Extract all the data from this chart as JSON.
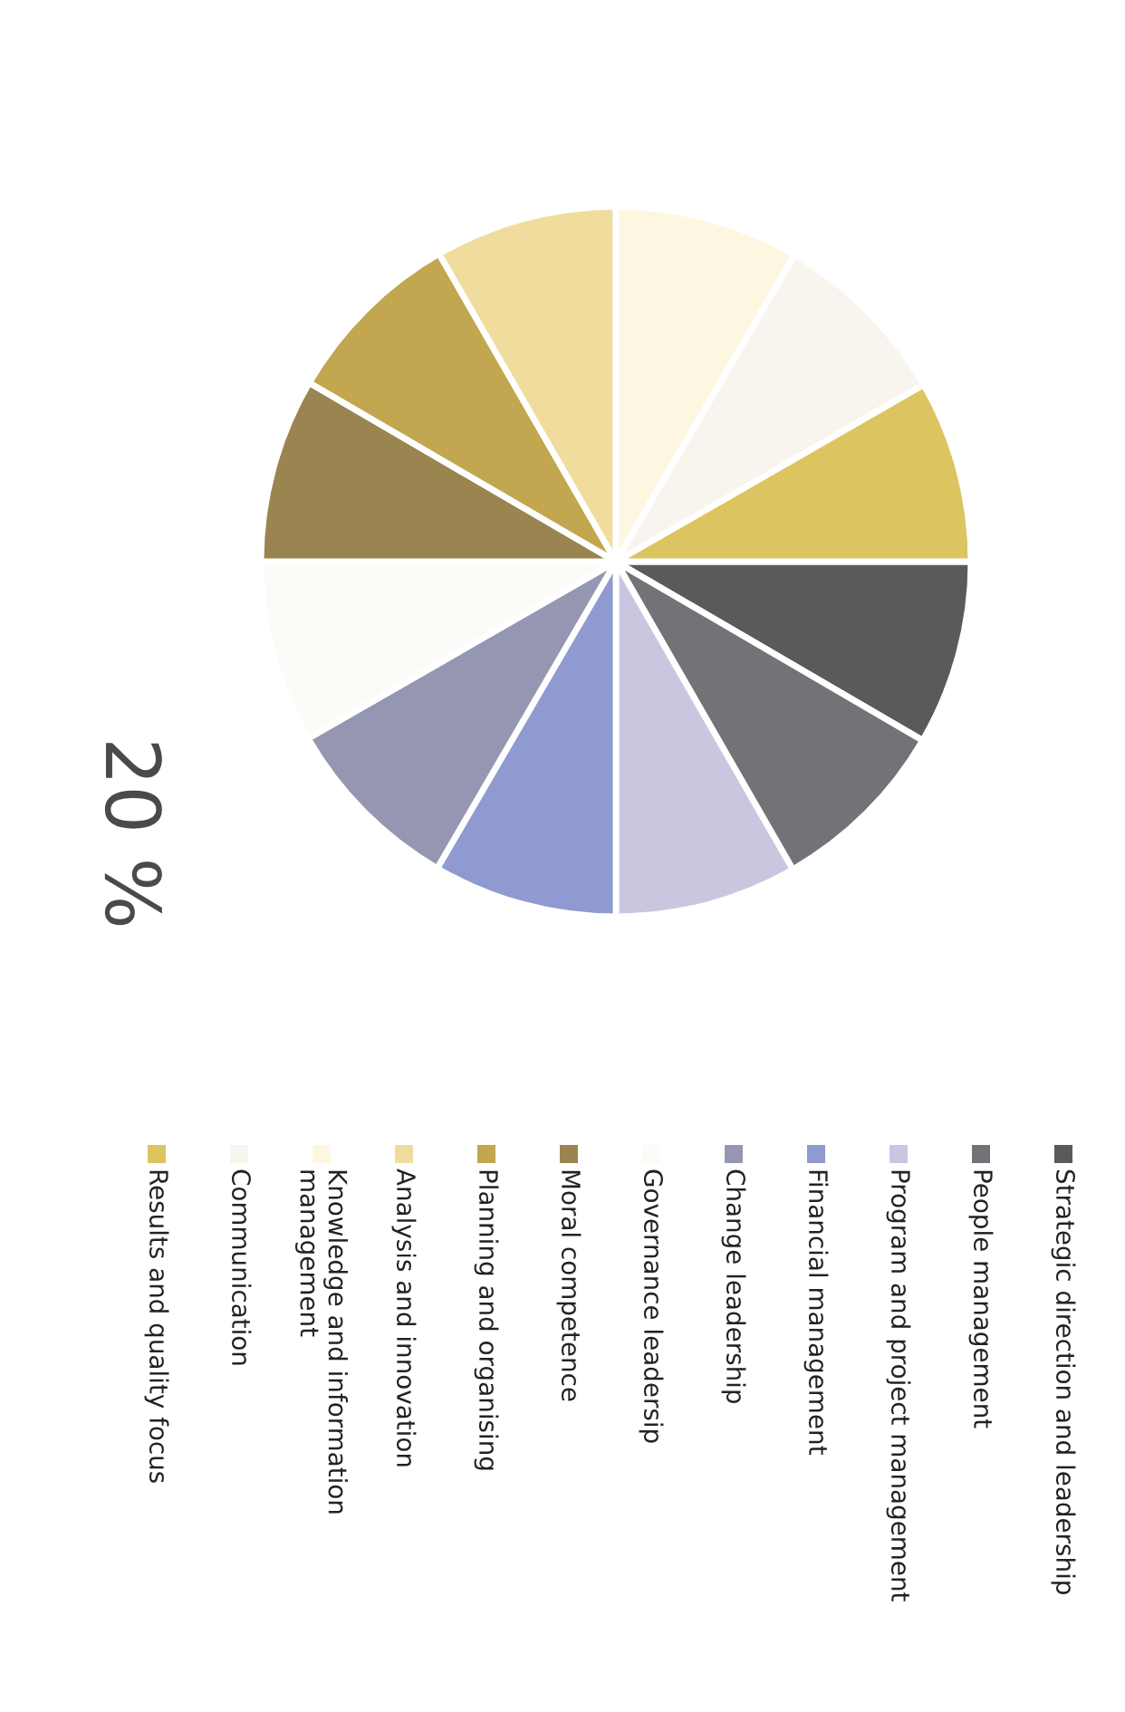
{
  "chart_data": {
    "type": "pie",
    "title": "20 %",
    "legend": "bottom",
    "categories": [
      "Strategic direction and leadership",
      "People management",
      "Program and project management",
      "Financial management",
      "Change leadership",
      "Governance leadersip",
      "Moral competence",
      "Planning and organising",
      "Analysis and innovation",
      "Knowledge and information\nmanagement",
      "Communication",
      "Results and quality focus"
    ],
    "values": [
      8.4,
      8.3,
      8.3,
      8.4,
      8.3,
      8.3,
      8.4,
      8.3,
      8.3,
      8.4,
      8.3,
      8.3
    ],
    "colors": [
      "#5a5a5c",
      "#737377",
      "#c9c7df",
      "#8e9ad0",
      "#9597b2",
      "#fdfbf8",
      "#9a8450",
      "#c2a650",
      "#f0dc9c",
      "#fdf7e2",
      "#f8f5ee",
      "#dcc460"
    ]
  }
}
